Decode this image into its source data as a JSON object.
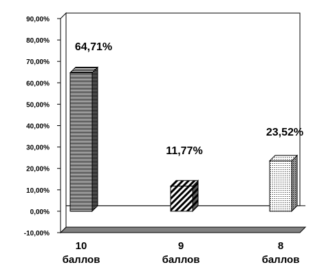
{
  "chart_data": {
    "type": "bar",
    "categories": [
      [
        "10",
        "баллов"
      ],
      [
        "9",
        "баллов"
      ],
      [
        "8",
        "баллов"
      ]
    ],
    "values": [
      64.71,
      11.77,
      23.52
    ],
    "data_labels": [
      "64,71%",
      "11,77%",
      "23,52%"
    ],
    "y_ticks": [
      {
        "value": 90,
        "label": "90,00%"
      },
      {
        "value": 80,
        "label": "80,00%"
      },
      {
        "value": 70,
        "label": "70,00%"
      },
      {
        "value": 60,
        "label": "60,00%"
      },
      {
        "value": 50,
        "label": "50,00%"
      },
      {
        "value": 40,
        "label": "40,00%"
      },
      {
        "value": 30,
        "label": "30,00%"
      },
      {
        "value": 20,
        "label": "20,00%"
      },
      {
        "value": 10,
        "label": "10,00%"
      },
      {
        "value": 0,
        "label": "0,00%"
      },
      {
        "value": -10,
        "label": "-10,00%"
      }
    ],
    "ylim": [
      -10,
      90
    ],
    "grid": false,
    "legend": "none",
    "bar_patterns": [
      "horizontal-lines",
      "diagonal-stripes",
      "dots"
    ],
    "colors": {
      "bar_fill": "#ffffff",
      "bar_ink": "#000000",
      "floor": "#808080",
      "side_shade": "#404040"
    }
  }
}
